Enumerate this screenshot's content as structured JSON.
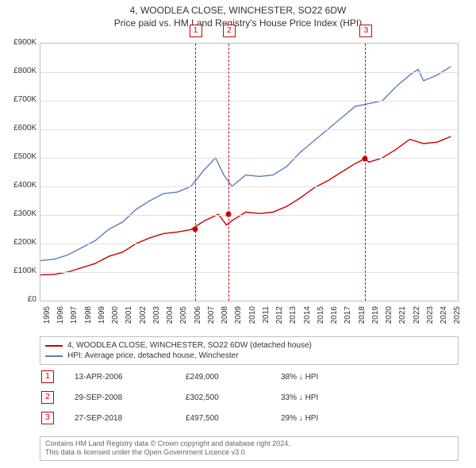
{
  "header": {
    "title": "4, WOODLEA CLOSE, WINCHESTER, SO22 6DW",
    "subtitle": "Price paid vs. HM Land Registry's House Price Index (HPI)"
  },
  "chart": {
    "type": "line",
    "background_color": "#ffffff",
    "grid_color": "#e0e0e0",
    "border_color": "#c0c0c0",
    "xlim": [
      1995,
      2025.5
    ],
    "ylim": [
      0,
      900000
    ],
    "ytick_step": 100000,
    "ytick_prefix": "£",
    "ytick_suffix": "K",
    "xticks": [
      1995,
      1996,
      1997,
      1998,
      1999,
      2000,
      2001,
      2002,
      2003,
      2004,
      2005,
      2006,
      2007,
      2008,
      2009,
      2010,
      2011,
      2012,
      2013,
      2014,
      2015,
      2016,
      2017,
      2018,
      2019,
      2020,
      2021,
      2022,
      2023,
      2024,
      2025
    ],
    "series": [
      {
        "id": "property",
        "label": "4, WOODLEA CLOSE, WINCHESTER, SO22 6DW (detached house)",
        "color": "#cc0000",
        "line_width": 1.4,
        "data": [
          [
            1995,
            90000
          ],
          [
            1996,
            92000
          ],
          [
            1997,
            100000
          ],
          [
            1998,
            115000
          ],
          [
            1999,
            130000
          ],
          [
            2000,
            155000
          ],
          [
            2001,
            170000
          ],
          [
            2002,
            200000
          ],
          [
            2003,
            220000
          ],
          [
            2004,
            235000
          ],
          [
            2005,
            240000
          ],
          [
            2006,
            249000
          ],
          [
            2007,
            280000
          ],
          [
            2008,
            302500
          ],
          [
            2008.6,
            265000
          ],
          [
            2009,
            280000
          ],
          [
            2010,
            310000
          ],
          [
            2011,
            305000
          ],
          [
            2012,
            310000
          ],
          [
            2013,
            330000
          ],
          [
            2014,
            360000
          ],
          [
            2015,
            395000
          ],
          [
            2016,
            420000
          ],
          [
            2017,
            450000
          ],
          [
            2018,
            480000
          ],
          [
            2018.74,
            497500
          ],
          [
            2019,
            485000
          ],
          [
            2020,
            500000
          ],
          [
            2021,
            530000
          ],
          [
            2022,
            565000
          ],
          [
            2023,
            550000
          ],
          [
            2024,
            555000
          ],
          [
            2025,
            575000
          ]
        ]
      },
      {
        "id": "hpi",
        "label": "HPI: Average price, detached house, Winchester",
        "color": "#5b7ebc",
        "line_width": 1.4,
        "data": [
          [
            1995,
            140000
          ],
          [
            1996,
            145000
          ],
          [
            1997,
            160000
          ],
          [
            1998,
            185000
          ],
          [
            1999,
            210000
          ],
          [
            2000,
            250000
          ],
          [
            2001,
            275000
          ],
          [
            2002,
            320000
          ],
          [
            2003,
            350000
          ],
          [
            2004,
            375000
          ],
          [
            2005,
            380000
          ],
          [
            2006,
            400000
          ],
          [
            2007,
            460000
          ],
          [
            2007.8,
            500000
          ],
          [
            2008.4,
            440000
          ],
          [
            2009,
            400000
          ],
          [
            2010,
            440000
          ],
          [
            2011,
            435000
          ],
          [
            2012,
            440000
          ],
          [
            2013,
            470000
          ],
          [
            2014,
            520000
          ],
          [
            2015,
            560000
          ],
          [
            2016,
            600000
          ],
          [
            2017,
            640000
          ],
          [
            2018,
            680000
          ],
          [
            2019,
            690000
          ],
          [
            2020,
            700000
          ],
          [
            2021,
            750000
          ],
          [
            2022,
            790000
          ],
          [
            2022.6,
            810000
          ],
          [
            2023,
            770000
          ],
          [
            2024,
            790000
          ],
          [
            2025,
            820000
          ]
        ]
      }
    ],
    "markers": [
      {
        "n": 1,
        "x": 2006.28,
        "y": 249000
      },
      {
        "n": 2,
        "x": 2008.74,
        "y": 302500
      },
      {
        "n": 3,
        "x": 2018.74,
        "y": 497500
      }
    ],
    "marker_color": "#cc0000",
    "marker_line_dash": "3,3"
  },
  "legend": {
    "items": [
      {
        "color": "#cc0000",
        "label_bind": "chart.series.0.label"
      },
      {
        "color": "#5b7ebc",
        "label_bind": "chart.series.1.label"
      }
    ]
  },
  "events": [
    {
      "n": 1,
      "date": "13-APR-2006",
      "price": "£249,000",
      "pct": "38% ↓ HPI"
    },
    {
      "n": 2,
      "date": "29-SEP-2008",
      "price": "£302,500",
      "pct": "33% ↓ HPI"
    },
    {
      "n": 3,
      "date": "27-SEP-2018",
      "price": "£497,500",
      "pct": "29% ↓ HPI"
    }
  ],
  "footer": {
    "line1": "Contains HM Land Registry data © Crown copyright and database right 2024.",
    "line2": "This data is licensed under the Open Government Licence v3.0."
  }
}
